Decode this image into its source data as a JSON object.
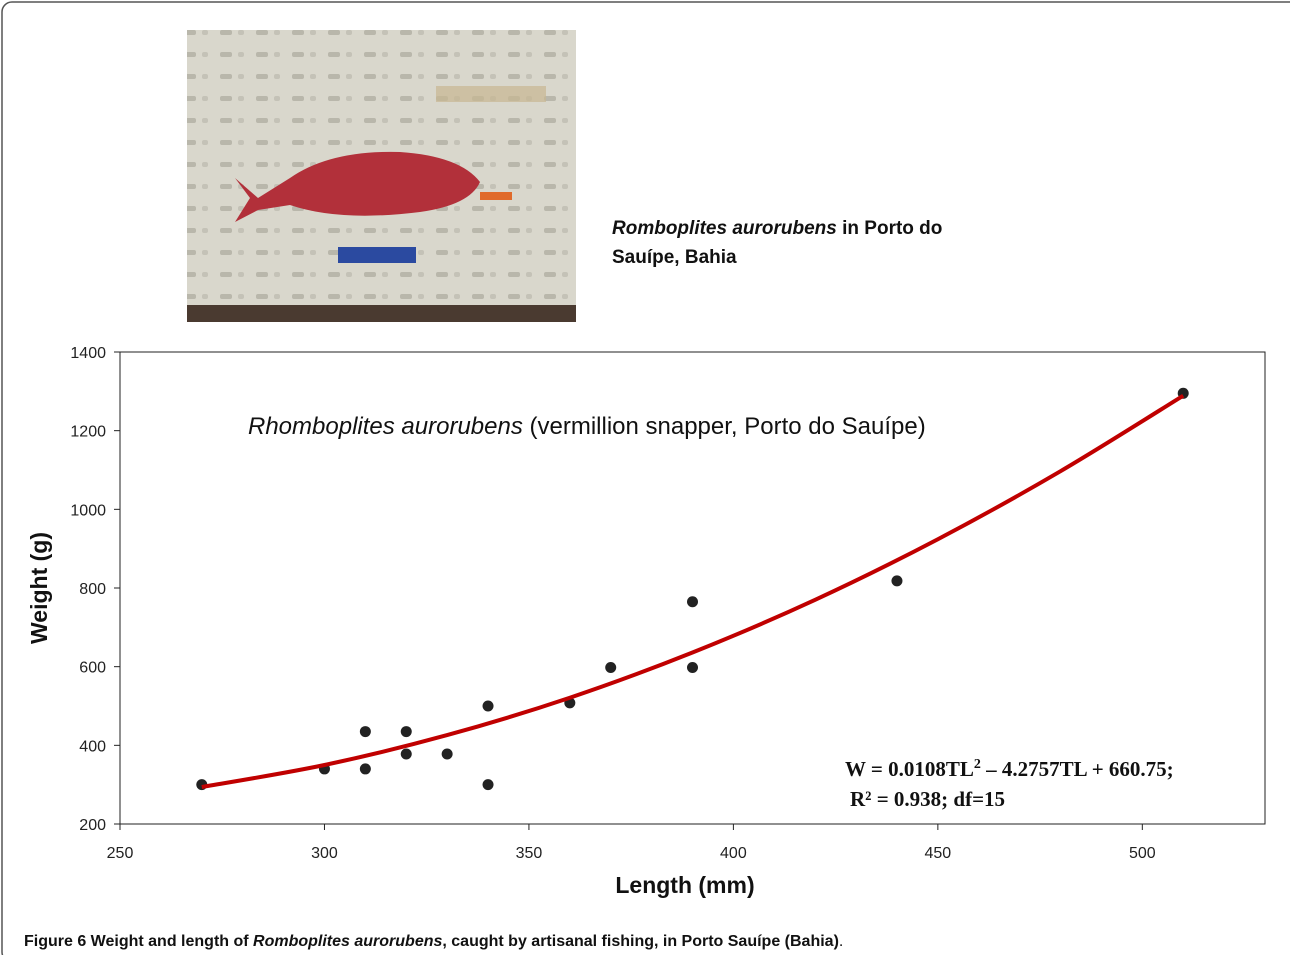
{
  "chart_data": {
    "type": "scatter",
    "title_species": "Rhomboplites aurorubens",
    "title_rest": " (vermillion snapper, Porto do Sauípe)",
    "xlabel": "Length (mm)",
    "ylabel": "Weight (g)",
    "x": [
      270,
      300,
      310,
      310,
      320,
      320,
      330,
      340,
      340,
      360,
      370,
      390,
      390,
      440,
      510
    ],
    "y": [
      300,
      340,
      340,
      435,
      435,
      378,
      378,
      500,
      300,
      508,
      598,
      598,
      765,
      818,
      1295
    ],
    "color": "#222222",
    "fit": {
      "x": [
        270,
        300,
        330,
        360,
        390,
        420,
        450,
        480,
        510
      ],
      "y": [
        294,
        350,
        426,
        521,
        636,
        770,
        924,
        1097,
        1289
      ],
      "color": "#c00000"
    },
    "equation": {
      "lhs": "W = 0.0108TL",
      "sup": "2",
      "rhs": " – 4.2757TL + 660.75;",
      "line2": "R² = 0.938; df=15"
    },
    "xlim": [
      250,
      530
    ],
    "ylim": [
      200,
      1400
    ],
    "xticks": [
      250,
      300,
      350,
      400,
      450,
      500
    ],
    "yticks": [
      200,
      400,
      600,
      800,
      1000,
      1200,
      1400
    ]
  },
  "photo_caption": {
    "species": "Romboplites aurorubens",
    "rest": " in Porto do",
    "line2": "Sauípe, Bahia"
  },
  "caption": {
    "label": "Figure 6",
    "text1": " Weight and length of ",
    "species": "Romboplites aurorubens",
    "text2": ", caught by artisanal fishing, in Porto Sauípe (Bahia)",
    "end": "."
  }
}
